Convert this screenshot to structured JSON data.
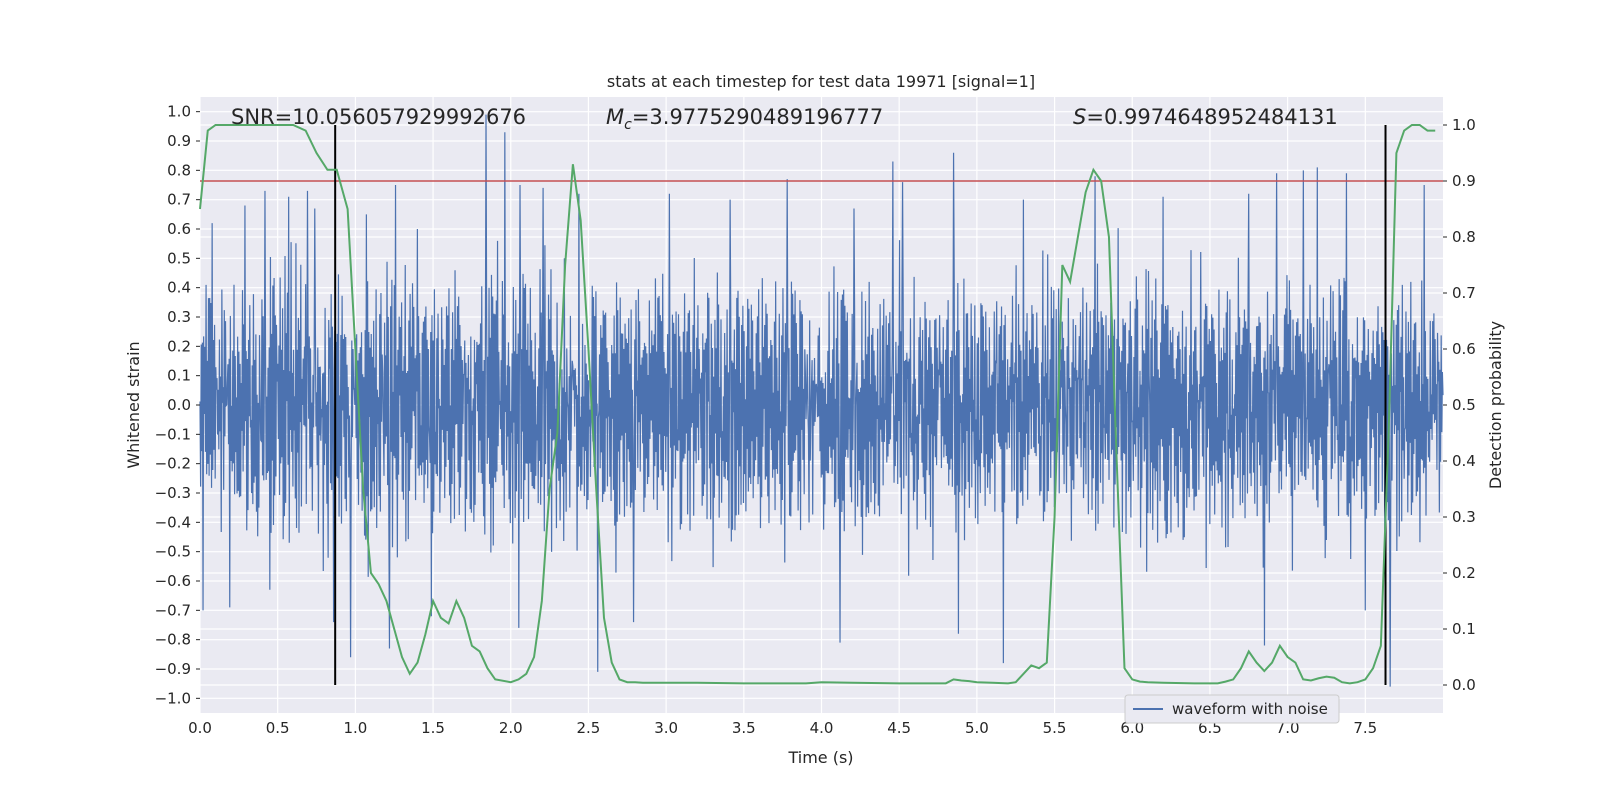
{
  "chart_data": {
    "type": "line",
    "title": "stats at each timestep for test data 19971 [signal=1]",
    "xlabel": "Time (s)",
    "ylabel": "Whitened strain",
    "y2label": "Detection probability",
    "xlim": [
      0.0,
      8.0
    ],
    "ylim": [
      -1.05,
      1.05
    ],
    "y2lim": [
      -0.05,
      1.05
    ],
    "xticks": [
      0.0,
      0.5,
      1.0,
      1.5,
      2.0,
      2.5,
      3.0,
      3.5,
      4.0,
      4.5,
      5.0,
      5.5,
      6.0,
      6.5,
      7.0,
      7.5
    ],
    "xtick_labels": [
      "0.0",
      "0.5",
      "1.0",
      "1.5",
      "2.0",
      "2.5",
      "3.0",
      "3.5",
      "4.0",
      "4.5",
      "5.0",
      "5.5",
      "6.0",
      "6.5",
      "7.0",
      "7.5"
    ],
    "yticks": [
      -1.0,
      -0.9,
      -0.8,
      -0.7,
      -0.6,
      -0.5,
      -0.4,
      -0.3,
      -0.2,
      -0.1,
      0.0,
      0.1,
      0.2,
      0.3,
      0.4,
      0.5,
      0.6,
      0.7,
      0.8,
      0.9,
      1.0
    ],
    "ytick_labels": [
      "−1.0",
      "−0.9",
      "−0.8",
      "−0.7",
      "−0.6",
      "−0.5",
      "−0.4",
      "−0.3",
      "−0.2",
      "−0.1",
      "0.0",
      "0.1",
      "0.2",
      "0.3",
      "0.4",
      "0.5",
      "0.6",
      "0.7",
      "0.8",
      "0.9",
      "1.0"
    ],
    "y2ticks": [
      0.0,
      0.1,
      0.2,
      0.3,
      0.4,
      0.5,
      0.6,
      0.7,
      0.8,
      0.9,
      1.0
    ],
    "y2tick_labels": [
      "0.0",
      "0.1",
      "0.2",
      "0.3",
      "0.4",
      "0.5",
      "0.6",
      "0.7",
      "0.8",
      "0.9",
      "1.0"
    ],
    "grid": true,
    "legend": {
      "entries": [
        "waveform with noise"
      ],
      "placement": "lower-right"
    },
    "annotations": {
      "snr": "SNR=10.056057929992676",
      "mc_symbol": "M",
      "mc_sub": "c",
      "mc_value": "=3.9775290489196777",
      "s_symbol": "S",
      "s_value": "=0.9974648952484131"
    },
    "threshold": {
      "axis": "y2",
      "value": 0.9
    },
    "vlines": [
      {
        "x": 0.87,
        "ymin": 0.0,
        "ymax": 1.0
      },
      {
        "x": 7.63,
        "ymin": 0.0,
        "ymax": 1.0
      }
    ],
    "series": [
      {
        "name": "waveform with noise",
        "axis": "y",
        "kind": "dense-noise",
        "n_samples": 2048,
        "envelope_typical": 0.4,
        "peaks": [
          {
            "x": 0.02,
            "v": 0.68
          },
          {
            "x": 0.08,
            "v": 0.62
          },
          {
            "x": 0.29,
            "v": 0.68
          },
          {
            "x": 0.42,
            "v": 0.73
          },
          {
            "x": 0.57,
            "v": 0.71
          },
          {
            "x": 0.69,
            "v": 0.73
          },
          {
            "x": 0.74,
            "v": 0.67
          },
          {
            "x": 0.86,
            "v": 0.68
          },
          {
            "x": 1.07,
            "v": 0.65
          },
          {
            "x": 1.26,
            "v": 0.75
          },
          {
            "x": 1.4,
            "v": 0.6
          },
          {
            "x": 1.49,
            "v": 0.8
          },
          {
            "x": 1.84,
            "v": 0.99
          },
          {
            "x": 1.96,
            "v": 0.93
          },
          {
            "x": 2.06,
            "v": 0.75
          },
          {
            "x": 2.21,
            "v": 0.74
          },
          {
            "x": 2.44,
            "v": 0.72
          },
          {
            "x": 3.02,
            "v": 0.72
          },
          {
            "x": 3.41,
            "v": 0.7
          },
          {
            "x": 3.78,
            "v": 0.77
          },
          {
            "x": 4.21,
            "v": 0.67
          },
          {
            "x": 4.46,
            "v": 0.83
          },
          {
            "x": 4.52,
            "v": 0.76
          },
          {
            "x": 4.85,
            "v": 0.86
          },
          {
            "x": 5.3,
            "v": 0.7
          },
          {
            "x": 5.76,
            "v": 0.78
          },
          {
            "x": 6.2,
            "v": 0.71
          },
          {
            "x": 6.75,
            "v": 0.72
          },
          {
            "x": 6.93,
            "v": 0.79
          },
          {
            "x": 7.1,
            "v": 0.8
          },
          {
            "x": 7.19,
            "v": 0.81
          },
          {
            "x": 7.38,
            "v": 0.79
          },
          {
            "x": 7.88,
            "v": 0.75
          },
          {
            "x": 0.02,
            "v": -0.7
          },
          {
            "x": 0.19,
            "v": -0.69
          },
          {
            "x": 0.45,
            "v": -0.63
          },
          {
            "x": 0.86,
            "v": -0.74
          },
          {
            "x": 0.97,
            "v": -0.86
          },
          {
            "x": 1.22,
            "v": -0.83
          },
          {
            "x": 1.49,
            "v": -0.72
          },
          {
            "x": 2.05,
            "v": -0.76
          },
          {
            "x": 2.56,
            "v": -0.91
          },
          {
            "x": 2.79,
            "v": -0.74
          },
          {
            "x": 4.12,
            "v": -0.81
          },
          {
            "x": 4.88,
            "v": -0.78
          },
          {
            "x": 5.17,
            "v": -0.88
          },
          {
            "x": 6.85,
            "v": -0.82
          },
          {
            "x": 7.5,
            "v": -0.7
          },
          {
            "x": 7.66,
            "v": -0.96
          }
        ]
      },
      {
        "name": "detection probability",
        "axis": "y2",
        "x": [
          0.0,
          0.05,
          0.1,
          0.2,
          0.3,
          0.4,
          0.5,
          0.6,
          0.68,
          0.75,
          0.82,
          0.88,
          0.9,
          0.95,
          1.0,
          1.05,
          1.1,
          1.15,
          1.2,
          1.25,
          1.3,
          1.35,
          1.4,
          1.45,
          1.5,
          1.55,
          1.6,
          1.65,
          1.7,
          1.75,
          1.8,
          1.85,
          1.9,
          2.0,
          2.05,
          2.1,
          2.15,
          2.2,
          2.25,
          2.3,
          2.35,
          2.4,
          2.45,
          2.5,
          2.55,
          2.6,
          2.65,
          2.7,
          2.75,
          2.8,
          2.85,
          2.9,
          3.0,
          3.2,
          3.5,
          3.8,
          3.9,
          4.0,
          4.2,
          4.5,
          4.7,
          4.8,
          4.85,
          4.9,
          4.95,
          5.0,
          5.1,
          5.2,
          5.25,
          5.3,
          5.35,
          5.4,
          5.45,
          5.5,
          5.55,
          5.6,
          5.65,
          5.7,
          5.75,
          5.8,
          5.85,
          5.9,
          5.95,
          6.0,
          6.05,
          6.1,
          6.2,
          6.4,
          6.55,
          6.6,
          6.65,
          6.7,
          6.75,
          6.8,
          6.85,
          6.9,
          6.95,
          7.0,
          7.05,
          7.1,
          7.15,
          7.2,
          7.25,
          7.3,
          7.35,
          7.4,
          7.45,
          7.5,
          7.55,
          7.6,
          7.65,
          7.7,
          7.75,
          7.8,
          7.85,
          7.9,
          7.95
        ],
        "values": [
          0.85,
          0.99,
          1.0,
          1.0,
          1.0,
          1.0,
          1.0,
          1.0,
          0.99,
          0.95,
          0.92,
          0.92,
          0.9,
          0.85,
          0.6,
          0.35,
          0.2,
          0.18,
          0.15,
          0.1,
          0.05,
          0.02,
          0.04,
          0.09,
          0.15,
          0.12,
          0.11,
          0.15,
          0.12,
          0.07,
          0.06,
          0.03,
          0.01,
          0.005,
          0.01,
          0.02,
          0.05,
          0.15,
          0.35,
          0.45,
          0.75,
          0.93,
          0.83,
          0.6,
          0.35,
          0.12,
          0.04,
          0.01,
          0.005,
          0.005,
          0.004,
          0.004,
          0.004,
          0.004,
          0.003,
          0.003,
          0.003,
          0.005,
          0.004,
          0.003,
          0.003,
          0.003,
          0.01,
          0.008,
          0.007,
          0.005,
          0.004,
          0.003,
          0.005,
          0.02,
          0.035,
          0.03,
          0.04,
          0.3,
          0.75,
          0.72,
          0.8,
          0.88,
          0.92,
          0.9,
          0.8,
          0.4,
          0.03,
          0.01,
          0.006,
          0.005,
          0.004,
          0.003,
          0.003,
          0.006,
          0.01,
          0.03,
          0.06,
          0.04,
          0.025,
          0.04,
          0.07,
          0.05,
          0.04,
          0.01,
          0.008,
          0.012,
          0.015,
          0.013,
          0.005,
          0.003,
          0.005,
          0.01,
          0.03,
          0.07,
          0.45,
          0.95,
          0.99,
          1.0,
          1.0,
          0.99,
          0.99
        ]
      }
    ]
  }
}
